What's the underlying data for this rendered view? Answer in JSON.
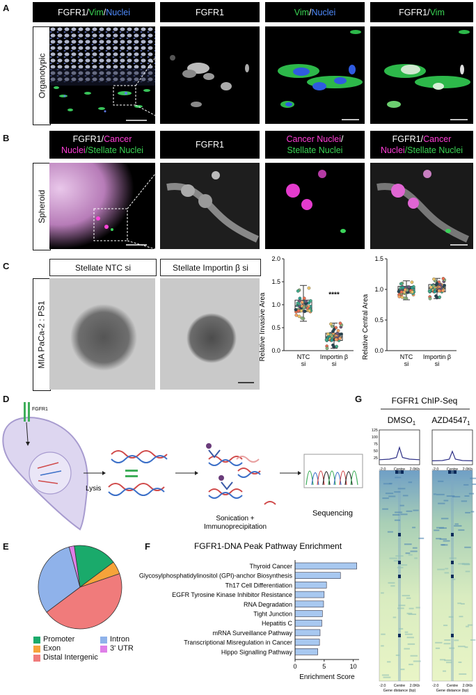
{
  "panels": {
    "A": "A",
    "B": "B",
    "C": "C",
    "D": "D",
    "E": "E",
    "F": "F",
    "G": "G"
  },
  "panelA": {
    "row_label": "Organotypic",
    "headers": [
      {
        "parts": [
          {
            "t": "FGFR1/",
            "c": "w"
          },
          {
            "t": "Vim",
            "c": "g"
          },
          {
            "t": "/",
            "c": "w"
          },
          {
            "t": "Nuclei",
            "c": "b"
          }
        ]
      },
      {
        "parts": [
          {
            "t": "FGFR1",
            "c": "w"
          }
        ]
      },
      {
        "parts": [
          {
            "t": "Vim",
            "c": "g"
          },
          {
            "t": "/",
            "c": "w"
          },
          {
            "t": "Nuclei",
            "c": "b"
          }
        ]
      },
      {
        "parts": [
          {
            "t": "FGFR1/",
            "c": "w"
          },
          {
            "t": "Vim",
            "c": "g"
          }
        ]
      }
    ]
  },
  "panelB": {
    "row_label": "Spheroid",
    "header1_line1": "FGFR1/",
    "header1_line1b": "Cancer",
    "header1_line2a": "Nuclei",
    "header1_line2b": "/Stellate Nuclei",
    "header2": "FGFR1",
    "header3_line1": "Cancer Nuclei",
    "header3_line1b": "/",
    "header3_line2": "Stellate Nuclei",
    "header4_line1": "FGFR1/",
    "header4_line1b": "Cancer",
    "header4_line2a": "Nuclei",
    "header4_line2b": "/Stellate Nuclei"
  },
  "panelC": {
    "row_label": "MIA PaCa-2 : PS1",
    "img1_label": "Stellate NTC si",
    "img2_label": "Stellate Importin β si",
    "chart1": {
      "ylabel": "Relative Invasive Area",
      "yticks": [
        "0.0",
        "0.5",
        "1.0",
        "1.5",
        "2.0"
      ],
      "cats": [
        "NTC si",
        "Importin β si"
      ],
      "sig": "****"
    },
    "chart2": {
      "ylabel": "Relative Central Area",
      "yticks": [
        "0.0",
        "0.5",
        "1.0",
        "1.5"
      ],
      "cats": [
        "NTC si",
        "Importin β si"
      ]
    }
  },
  "panelD": {
    "fgfr1": "FGFR1",
    "lysis": "Lysis",
    "sonication_line1": "Sonication +",
    "sonication_line2": "Immunoprecipitation",
    "sequencing": "Sequencing"
  },
  "panelE": {
    "legend": [
      {
        "label": "Promoter",
        "color": "#1aaa6b"
      },
      {
        "label": "Intron",
        "color": "#8fb2ea"
      },
      {
        "label": "Exon",
        "color": "#f6a33a"
      },
      {
        "label": "3' UTR",
        "color": "#df7fe8"
      },
      {
        "label": "Distal Intergenic",
        "color": "#f07b7b"
      }
    ]
  },
  "panelF": {
    "title": "FGFR1-DNA Peak Pathway Enrichment",
    "xlabel": "Enrichment Score",
    "xticks": [
      "0",
      "5",
      "10"
    ]
  },
  "panelG": {
    "title": "FGFR1 ChIP-Seq",
    "col1": "DMSO",
    "col1_sub": "1",
    "col2": "AZD4547",
    "col2_sub": "1",
    "profile_yticks": [
      "125",
      "100",
      "75",
      "50",
      "25"
    ],
    "axis_left": "-2.0",
    "axis_mid": "Centre",
    "axis_right": "2.0Kb",
    "xlabel": "Gene distance (bp)"
  },
  "chart_data": [
    {
      "type": "pie",
      "title": "",
      "slices": [
        {
          "label": "Promoter",
          "value": 17,
          "color": "#1aaa6b"
        },
        {
          "label": "Exon",
          "value": 5,
          "color": "#f6a33a"
        },
        {
          "label": "Distal Intergenic",
          "value": 45,
          "color": "#f07b7b"
        },
        {
          "label": "Intron",
          "value": 31,
          "color": "#8fb2ea"
        },
        {
          "label": "3' UTR",
          "value": 2,
          "color": "#df7fe8"
        }
      ]
    },
    {
      "type": "bar",
      "orientation": "horizontal",
      "title": "FGFR1-DNA Peak Pathway Enrichment",
      "xlabel": "Enrichment Score",
      "xlim": [
        0,
        11
      ],
      "categories": [
        "Thyroid Cancer",
        "Glycosylphosphatidylinositol (GPI)-anchor Biosynthesis",
        "Th17 Cell Differentiation",
        "EGFR Tyrosine Kinase Inhibitor Resistance",
        "RNA Degradation",
        "Tight Junction",
        "Hepatitis C",
        "mRNA Surveillance Pathway",
        "Transcriptional Misregulation in Cancer",
        "Hippo Signalling Pathway"
      ],
      "values": [
        10.6,
        7.8,
        5.4,
        5.0,
        4.9,
        4.7,
        4.6,
        4.3,
        4.2,
        3.9
      ],
      "color": "#a8c8f0"
    },
    {
      "type": "scatter",
      "title": "",
      "ylabel": "Relative Invasive Area",
      "ylim": [
        0,
        2.0
      ],
      "categories": [
        "NTC si",
        "Importin β si"
      ],
      "box": [
        {
          "min": 0.64,
          "q1": 0.85,
          "median": 0.97,
          "q3": 1.1,
          "max": 1.42
        },
        {
          "min": 0.05,
          "q1": 0.22,
          "median": 0.3,
          "q3": 0.38,
          "max": 0.6
        }
      ]
    },
    {
      "type": "scatter",
      "title": "",
      "ylabel": "Relative Central Area",
      "ylim": [
        0,
        1.5
      ],
      "categories": [
        "NTC si",
        "Importin β si"
      ],
      "box": [
        {
          "min": 0.83,
          "q1": 0.95,
          "median": 1.0,
          "q3": 1.05,
          "max": 1.14
        },
        {
          "min": 0.85,
          "q1": 0.96,
          "median": 1.02,
          "q3": 1.08,
          "max": 1.18
        }
      ]
    },
    {
      "type": "line",
      "title": "FGFR1 ChIP-Seq",
      "series": [
        {
          "name": "DMSO",
          "x": [
            -2.0,
            -1.0,
            -0.3,
            0,
            0.3,
            1.0,
            2.0
          ],
          "y": [
            18,
            20,
            26,
            62,
            26,
            20,
            18
          ]
        },
        {
          "name": "AZD4547",
          "x": [
            -2.0,
            -1.0,
            -0.3,
            0,
            0.3,
            1.0,
            2.0
          ],
          "y": [
            14,
            15,
            20,
            48,
            20,
            15,
            14
          ]
        }
      ],
      "ylim": [
        0,
        125
      ]
    }
  ]
}
